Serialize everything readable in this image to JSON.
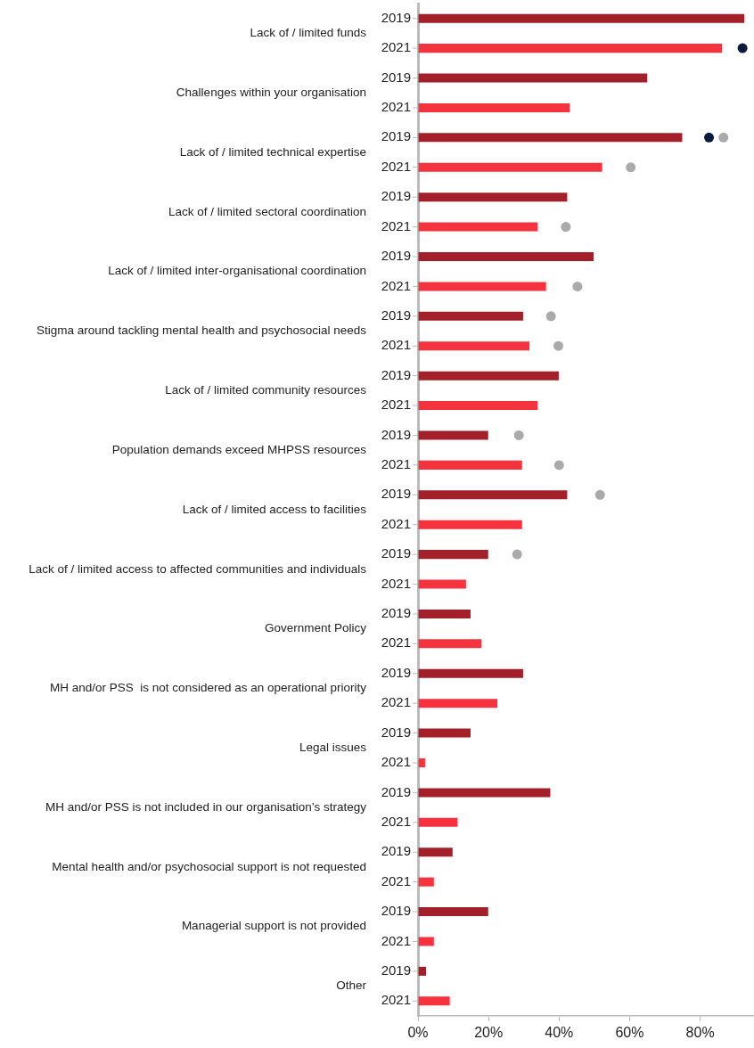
{
  "chart_data": {
    "type": "bar",
    "orientation": "horizontal",
    "categories": [
      "Lack of / limited funds",
      "Challenges within your organisation",
      "Lack of / limited technical expertise",
      "Lack of / limited sectoral coordination",
      "Lack of / limited inter-organisational coordination",
      "Stigma around tackling mental health and psychosocial needs",
      "Lack of / limited community resources",
      "Population demands exceed MHPSS resources",
      "Lack of / limited access to facilities",
      "Lack of / limited access to affected communities and individuals",
      "Government Policy",
      "MH and/or PSS  is not considered as an operational priority",
      "Legal issues",
      "MH and/or PSS is not included in our organisation’s strategy",
      "Mental health and/or psychosocial support is not requested",
      "Managerial support is not provided",
      "Other"
    ],
    "series": [
      {
        "name": "2019",
        "type": "bar",
        "color": "#a3202a",
        "values": [
          92.5,
          65.0,
          74.9,
          42.3,
          49.8,
          29.8,
          39.9,
          19.9,
          42.3,
          19.9,
          14.9,
          29.8,
          14.9,
          37.5,
          9.8,
          19.9,
          2.3
        ]
      },
      {
        "name": "2021",
        "type": "bar",
        "color": "#f5333f",
        "values": [
          86.2,
          43.0,
          52.2,
          33.9,
          36.3,
          31.6,
          33.9,
          29.5,
          29.5,
          13.6,
          18.0,
          22.5,
          2.0,
          11.2,
          4.5,
          4.5,
          9.0
        ]
      },
      {
        "type": "scatter",
        "color": "#aaaaaa",
        "values": [
          null,
          null,
          86.6,
          null,
          null,
          37.7,
          null,
          28.6,
          51.6,
          28.1,
          null,
          null,
          null,
          null,
          null,
          null,
          null
        ]
      },
      {
        "type": "scatter",
        "color": "#aaaaaa",
        "values": [
          null,
          null,
          60.3,
          41.9,
          45.2,
          39.8,
          null,
          40.0,
          null,
          null,
          null,
          null,
          null,
          null,
          null,
          null,
          null
        ]
      },
      {
        "type": "scatter",
        "color": "#0b1b3d",
        "values": [
          null,
          null,
          82.5,
          null,
          null,
          null,
          null,
          null,
          null,
          null,
          null,
          null,
          null,
          null,
          null,
          null,
          null
        ]
      },
      {
        "type": "scatter",
        "color": "#0b1b3d",
        "values": [
          92.0,
          null,
          null,
          null,
          null,
          null,
          null,
          null,
          null,
          null,
          null,
          null,
          null,
          null,
          null,
          null,
          null
        ]
      }
    ],
    "xlim": [
      0,
      95
    ],
    "xticks": [
      {
        "value": 0,
        "label": "0%"
      },
      {
        "value": 20,
        "label": "20%"
      },
      {
        "value": 40,
        "label": "40%"
      },
      {
        "value": 60,
        "label": "60%"
      },
      {
        "value": 80,
        "label": "80%"
      }
    ],
    "marker": "circle",
    "legend": false
  }
}
